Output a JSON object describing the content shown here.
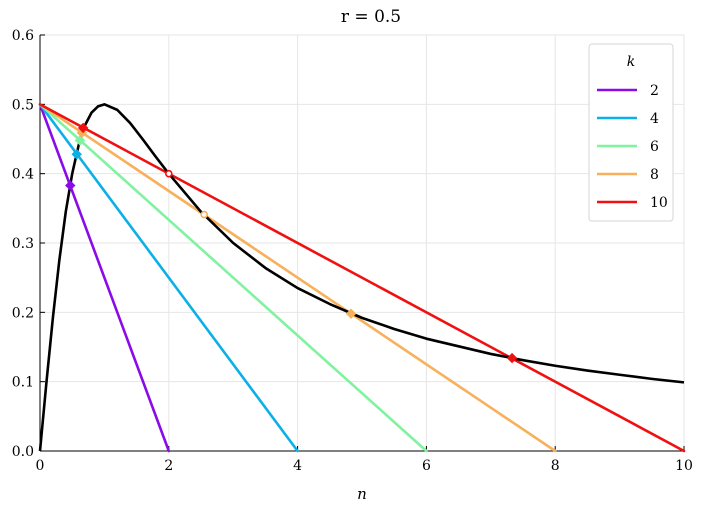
{
  "chart_data": {
    "type": "line",
    "title": "r = 0.5",
    "xlabel": "n",
    "ylabel": "",
    "xlim": [
      0,
      10
    ],
    "ylim": [
      0,
      0.6
    ],
    "xticks": [
      0,
      2,
      4,
      6,
      8,
      10
    ],
    "yticks": [
      0.0,
      0.1,
      0.2,
      0.3,
      0.4,
      0.5,
      0.6
    ],
    "ytick_labels": [
      "0.0",
      "0.1",
      "0.2",
      "0.3",
      "0.4",
      "0.5",
      "0.6"
    ],
    "grid": true,
    "legend": {
      "title": "k",
      "placement": "top-right"
    },
    "curve": {
      "color": "#000000",
      "x": [
        0,
        0.1,
        0.2,
        0.3,
        0.4,
        0.5,
        0.6,
        0.7,
        0.8,
        0.9,
        1.0,
        1.2,
        1.4,
        1.6,
        1.8,
        2.0,
        2.5,
        3.0,
        3.5,
        4.0,
        4.5,
        5.0,
        5.5,
        6.0,
        6.5,
        7.0,
        7.5,
        8.0,
        8.5,
        9.0,
        9.5,
        10.0
      ],
      "y": [
        0,
        0.099,
        0.192,
        0.275,
        0.345,
        0.4,
        0.441,
        0.47,
        0.488,
        0.497,
        0.5,
        0.492,
        0.473,
        0.449,
        0.424,
        0.4,
        0.345,
        0.3,
        0.264,
        0.235,
        0.212,
        0.192,
        0.176,
        0.162,
        0.151,
        0.14,
        0.131,
        0.123,
        0.116,
        0.11,
        0.104,
        0.099
      ]
    },
    "series": [
      {
        "name": "2",
        "color": "#8b0be8",
        "x": [
          0,
          2
        ],
        "y": [
          0.5,
          0
        ],
        "markers": [
          {
            "x": 0.47,
            "y": 0.383,
            "shape": "diamond",
            "filled": true
          }
        ]
      },
      {
        "name": "4",
        "color": "#0ab0e6",
        "x": [
          0,
          4
        ],
        "y": [
          0.5,
          0
        ],
        "markers": [
          {
            "x": 0.57,
            "y": 0.428,
            "shape": "diamond",
            "filled": true
          }
        ]
      },
      {
        "name": "6",
        "color": "#80f2a0",
        "x": [
          0,
          6
        ],
        "y": [
          0.5,
          0
        ],
        "markers": [
          {
            "x": 0.62,
            "y": 0.448,
            "shape": "diamond",
            "filled": true
          }
        ]
      },
      {
        "name": "8",
        "color": "#f7b05b",
        "x": [
          0,
          8
        ],
        "y": [
          0.5,
          0
        ],
        "markers": [
          {
            "x": 0.65,
            "y": 0.459,
            "shape": "diamond",
            "filled": true
          },
          {
            "x": 2.55,
            "y": 0.341,
            "shape": "circle",
            "filled": false
          },
          {
            "x": 4.83,
            "y": 0.198,
            "shape": "diamond",
            "filled": true
          }
        ]
      },
      {
        "name": "10",
        "color": "#f01010",
        "x": [
          0,
          10
        ],
        "y": [
          0.5,
          0
        ],
        "markers": [
          {
            "x": 0.67,
            "y": 0.466,
            "shape": "diamond",
            "filled": true
          },
          {
            "x": 2.0,
            "y": 0.4,
            "shape": "circle",
            "filled": false
          },
          {
            "x": 7.33,
            "y": 0.134,
            "shape": "diamond",
            "filled": true
          }
        ]
      }
    ]
  }
}
